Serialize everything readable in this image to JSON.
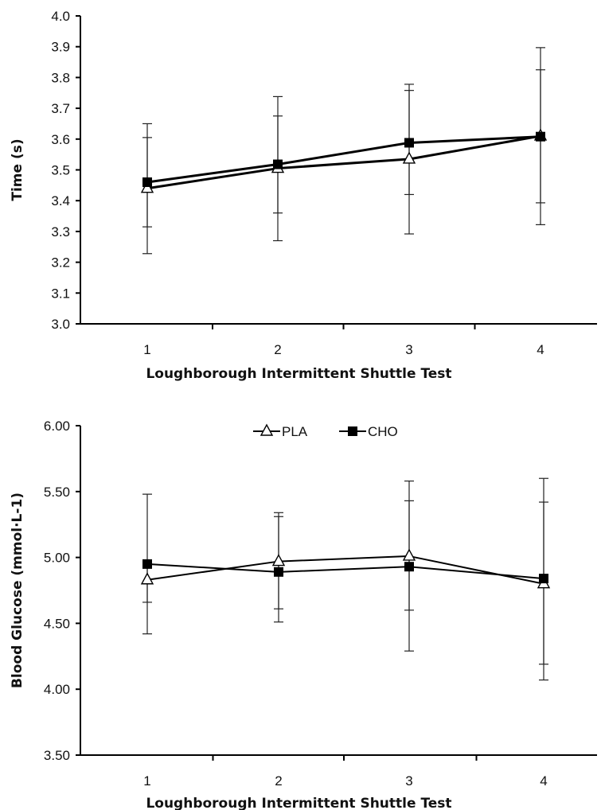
{
  "chart_data": [
    {
      "type": "line",
      "title": "",
      "xlabel": "Loughborough Intermittent Shuttle Test",
      "ylabel": "Time (s)",
      "categories": [
        "1",
        "2",
        "3",
        "4"
      ],
      "ylim": [
        3.0,
        4.0
      ],
      "yticks": [
        "3.0",
        "3.1",
        "3.2",
        "3.3",
        "3.4",
        "3.5",
        "3.6",
        "3.7",
        "3.8",
        "3.9",
        "4.0"
      ],
      "grid": false,
      "legend": "none",
      "series": [
        {
          "name": "PLA",
          "marker": "open-triangle",
          "values": [
            3.44,
            3.505,
            3.535,
            3.61
          ],
          "err_lo": [
            3.228,
            3.27,
            3.292,
            3.322
          ],
          "err_hi": [
            3.65,
            3.738,
            3.778,
            3.897
          ]
        },
        {
          "name": "CHO",
          "marker": "filled-square",
          "values": [
            3.46,
            3.518,
            3.588,
            3.608
          ],
          "err_lo": [
            3.315,
            3.36,
            3.42,
            3.393
          ],
          "err_hi": [
            3.605,
            3.675,
            3.758,
            3.825
          ]
        }
      ]
    },
    {
      "type": "line",
      "title": "",
      "xlabel": "Loughborough Intermittent Shuttle Test",
      "ylabel": "Blood Glucose (mmol·L-1)",
      "categories": [
        "1",
        "2",
        "3",
        "4"
      ],
      "ylim": [
        3.5,
        6.0
      ],
      "yticks": [
        "3.50",
        "4.00",
        "4.50",
        "5.00",
        "5.50",
        "6.00"
      ],
      "grid": false,
      "legend": "top-center",
      "series": [
        {
          "name": "PLA",
          "marker": "open-triangle",
          "values": [
            4.83,
            4.97,
            5.01,
            4.8
          ],
          "err_lo": [
            4.42,
            4.61,
            4.6,
            4.19
          ],
          "err_hi": [
            4.98,
            5.31,
            5.43,
            5.42
          ]
        },
        {
          "name": "CHO",
          "marker": "filled-square",
          "values": [
            4.95,
            4.89,
            4.93,
            4.84
          ],
          "err_lo": [
            4.66,
            4.51,
            4.29,
            4.07
          ],
          "err_hi": [
            5.48,
            5.34,
            5.58,
            5.6
          ]
        }
      ]
    }
  ]
}
